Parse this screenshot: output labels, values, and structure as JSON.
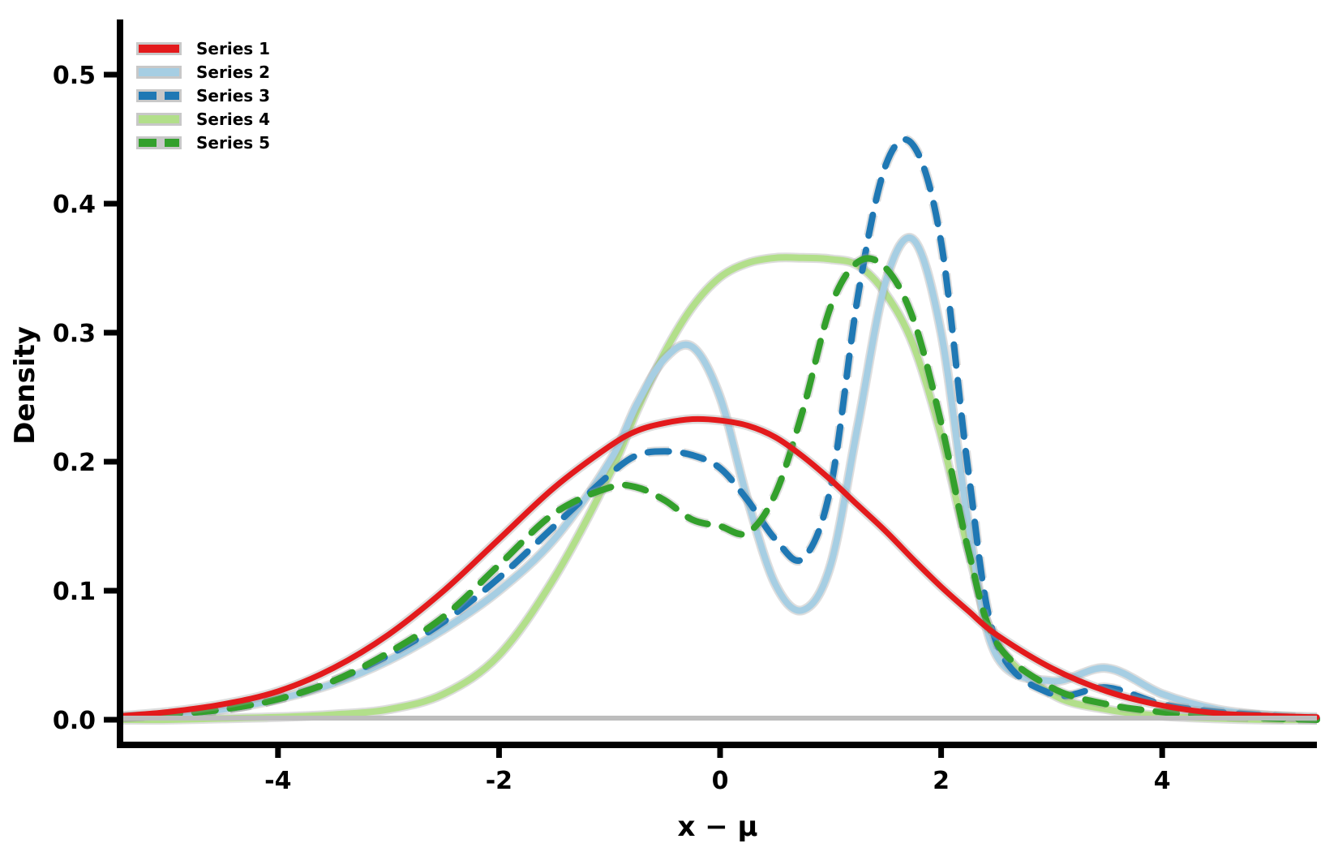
{
  "chart_data": {
    "type": "line",
    "title": "",
    "xlabel": "x − μ",
    "ylabel": "Density",
    "xlim": [
      -5.4,
      5.4
    ],
    "ylim": [
      0,
      0.54
    ],
    "xticks": [
      -4,
      -2,
      0,
      2,
      4
    ],
    "xtick_labels": [
      "-4",
      "-2",
      "0",
      "2",
      "4"
    ],
    "yticks": [
      0,
      0.1,
      0.2,
      0.3,
      0.4,
      0.5
    ],
    "ytick_labels": [
      "0.0",
      "0.1",
      "0.2",
      "0.3",
      "0.4",
      "0.5"
    ],
    "grid": false,
    "legend_position": "upper left",
    "x": [
      -5.4,
      -5.0,
      -4.5,
      -4.0,
      -3.5,
      -3.0,
      -2.5,
      -2.0,
      -1.5,
      -1.0,
      -0.75,
      -0.5,
      -0.25,
      0.0,
      0.25,
      0.5,
      0.75,
      1.0,
      1.25,
      1.5,
      1.75,
      2.0,
      2.25,
      2.5,
      3.0,
      3.5,
      4.0,
      4.5,
      5.0,
      5.4
    ],
    "series": [
      {
        "name": "Series 1",
        "color": "#e31a1c",
        "style": "solid",
        "values": [
          0.003,
          0.006,
          0.012,
          0.022,
          0.04,
          0.066,
          0.1,
          0.14,
          0.18,
          0.212,
          0.224,
          0.23,
          0.233,
          0.232,
          0.228,
          0.219,
          0.204,
          0.186,
          0.166,
          0.146,
          0.124,
          0.103,
          0.084,
          0.066,
          0.04,
          0.022,
          0.011,
          0.005,
          0.003,
          0.002
        ]
      },
      {
        "name": "Series 2",
        "color": "#a6cee3",
        "style": "solid",
        "values": [
          0.002,
          0.004,
          0.008,
          0.016,
          0.028,
          0.046,
          0.07,
          0.1,
          0.14,
          0.2,
          0.245,
          0.28,
          0.289,
          0.25,
          0.17,
          0.105,
          0.085,
          0.12,
          0.23,
          0.34,
          0.372,
          0.3,
          0.15,
          0.05,
          0.03,
          0.04,
          0.02,
          0.008,
          0.003,
          0.001
        ]
      },
      {
        "name": "Series 3",
        "color": "#1f78b4",
        "style": "dashed",
        "values": [
          0.002,
          0.004,
          0.008,
          0.016,
          0.03,
          0.05,
          0.076,
          0.11,
          0.15,
          0.19,
          0.205,
          0.208,
          0.205,
          0.195,
          0.17,
          0.14,
          0.125,
          0.18,
          0.33,
          0.43,
          0.445,
          0.37,
          0.19,
          0.06,
          0.02,
          0.025,
          0.012,
          0.006,
          0.003,
          0.001
        ]
      },
      {
        "name": "Series 4",
        "color": "#b2df8a",
        "style": "solid",
        "values": [
          0.0,
          0.0,
          0.001,
          0.002,
          0.004,
          0.008,
          0.02,
          0.05,
          0.11,
          0.19,
          0.24,
          0.285,
          0.32,
          0.343,
          0.354,
          0.358,
          0.358,
          0.357,
          0.352,
          0.33,
          0.29,
          0.22,
          0.13,
          0.06,
          0.02,
          0.008,
          0.003,
          0.001,
          0.0,
          0.0
        ]
      },
      {
        "name": "Series 5",
        "color": "#33a02c",
        "style": "dashed",
        "values": [
          0.002,
          0.004,
          0.008,
          0.016,
          0.03,
          0.052,
          0.08,
          0.12,
          0.16,
          0.18,
          0.18,
          0.17,
          0.155,
          0.15,
          0.145,
          0.175,
          0.24,
          0.32,
          0.355,
          0.35,
          0.31,
          0.23,
          0.13,
          0.06,
          0.025,
          0.012,
          0.006,
          0.003,
          0.001,
          0.0
        ]
      }
    ]
  },
  "legend": {
    "items": [
      {
        "label": "Series 1",
        "color": "#e31a1c",
        "style": "solid"
      },
      {
        "label": "Series 2",
        "color": "#a6cee3",
        "style": "solid"
      },
      {
        "label": "Series 3",
        "color": "#1f78b4",
        "style": "dashed"
      },
      {
        "label": "Series 4",
        "color": "#b2df8a",
        "style": "solid"
      },
      {
        "label": "Series 5",
        "color": "#33a02c",
        "style": "dashed"
      }
    ]
  },
  "axes": {
    "x_title": "x − μ",
    "y_title": "Density",
    "baseline_color": "#bdbdbd"
  }
}
